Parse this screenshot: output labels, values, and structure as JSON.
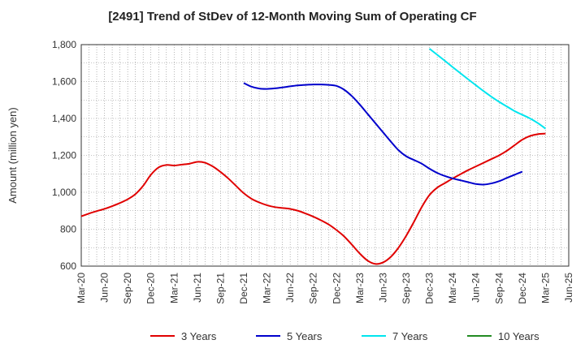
{
  "chart_data": {
    "type": "line",
    "title": "[2491]  Trend of StDev of 12-Month Moving Sum of Operating CF",
    "xlabel": "",
    "ylabel": "Amount (million yen)",
    "ylim": [
      600,
      1800
    ],
    "yticks": [
      600,
      800,
      1000,
      1200,
      1400,
      1600,
      1800
    ],
    "ytick_labels": [
      "600",
      "800",
      "1,000",
      "1,200",
      "1,400",
      "1,600",
      "1,800"
    ],
    "xtick_labels": [
      "Mar-20",
      "Jun-20",
      "Sep-20",
      "Dec-20",
      "Mar-21",
      "Jun-21",
      "Sep-21",
      "Dec-21",
      "Mar-22",
      "Jun-22",
      "Sep-22",
      "Dec-22",
      "Mar-23",
      "Jun-23",
      "Sep-23",
      "Dec-23",
      "Mar-24",
      "Jun-24",
      "Sep-24",
      "Dec-24",
      "Mar-25",
      "Jun-25"
    ],
    "grid": true,
    "legend_position": "bottom",
    "series": [
      {
        "name": "3 Years",
        "color": "#e00000",
        "points": [
          [
            "2020-03",
            870
          ],
          [
            "2020-04",
            885
          ],
          [
            "2020-05",
            898
          ],
          [
            "2020-06",
            910
          ],
          [
            "2020-07",
            925
          ],
          [
            "2020-08",
            942
          ],
          [
            "2020-09",
            962
          ],
          [
            "2020-10",
            990
          ],
          [
            "2020-11",
            1035
          ],
          [
            "2020-12",
            1095
          ],
          [
            "2021-01",
            1135
          ],
          [
            "2021-02",
            1148
          ],
          [
            "2021-03",
            1145
          ],
          [
            "2021-04",
            1150
          ],
          [
            "2021-05",
            1155
          ],
          [
            "2021-06",
            1165
          ],
          [
            "2021-07",
            1160
          ],
          [
            "2021-08",
            1140
          ],
          [
            "2021-09",
            1110
          ],
          [
            "2021-10",
            1075
          ],
          [
            "2021-11",
            1035
          ],
          [
            "2021-12",
            995
          ],
          [
            "2022-01",
            965
          ],
          [
            "2022-02",
            945
          ],
          [
            "2022-03",
            930
          ],
          [
            "2022-04",
            920
          ],
          [
            "2022-05",
            915
          ],
          [
            "2022-06",
            910
          ],
          [
            "2022-07",
            900
          ],
          [
            "2022-08",
            885
          ],
          [
            "2022-09",
            868
          ],
          [
            "2022-10",
            848
          ],
          [
            "2022-11",
            825
          ],
          [
            "2022-12",
            795
          ],
          [
            "2023-01",
            760
          ],
          [
            "2023-02",
            715
          ],
          [
            "2023-03",
            668
          ],
          [
            "2023-04",
            630
          ],
          [
            "2023-05",
            612
          ],
          [
            "2023-06",
            620
          ],
          [
            "2023-07",
            650
          ],
          [
            "2023-08",
            700
          ],
          [
            "2023-09",
            765
          ],
          [
            "2023-10",
            840
          ],
          [
            "2023-11",
            920
          ],
          [
            "2023-12",
            985
          ],
          [
            "2024-01",
            1025
          ],
          [
            "2024-02",
            1050
          ],
          [
            "2024-03",
            1075
          ],
          [
            "2024-04",
            1098
          ],
          [
            "2024-05",
            1120
          ],
          [
            "2024-06",
            1140
          ],
          [
            "2024-07",
            1160
          ],
          [
            "2024-08",
            1180
          ],
          [
            "2024-09",
            1200
          ],
          [
            "2024-10",
            1225
          ],
          [
            "2024-11",
            1255
          ],
          [
            "2024-12",
            1285
          ],
          [
            "2025-01",
            1305
          ],
          [
            "2025-02",
            1315
          ],
          [
            "2025-03",
            1318
          ]
        ]
      },
      {
        "name": "5 Years",
        "color": "#0000cc",
        "points": [
          [
            "2021-12",
            1592
          ],
          [
            "2022-01",
            1572
          ],
          [
            "2022-02",
            1562
          ],
          [
            "2022-03",
            1560
          ],
          [
            "2022-04",
            1563
          ],
          [
            "2022-05",
            1568
          ],
          [
            "2022-06",
            1574
          ],
          [
            "2022-07",
            1579
          ],
          [
            "2022-08",
            1582
          ],
          [
            "2022-09",
            1584
          ],
          [
            "2022-10",
            1584
          ],
          [
            "2022-11",
            1582
          ],
          [
            "2022-12",
            1576
          ],
          [
            "2023-01",
            1555
          ],
          [
            "2023-02",
            1520
          ],
          [
            "2023-03",
            1475
          ],
          [
            "2023-04",
            1425
          ],
          [
            "2023-05",
            1375
          ],
          [
            "2023-06",
            1325
          ],
          [
            "2023-07",
            1275
          ],
          [
            "2023-08",
            1228
          ],
          [
            "2023-09",
            1195
          ],
          [
            "2023-10",
            1175
          ],
          [
            "2023-11",
            1155
          ],
          [
            "2023-12",
            1128
          ],
          [
            "2024-01",
            1105
          ],
          [
            "2024-02",
            1088
          ],
          [
            "2024-03",
            1075
          ],
          [
            "2024-04",
            1065
          ],
          [
            "2024-05",
            1055
          ],
          [
            "2024-06",
            1045
          ],
          [
            "2024-07",
            1042
          ],
          [
            "2024-08",
            1048
          ],
          [
            "2024-09",
            1060
          ],
          [
            "2024-10",
            1078
          ],
          [
            "2024-11",
            1095
          ],
          [
            "2024-12",
            1112
          ]
        ]
      },
      {
        "name": "7 Years",
        "color": "#00e5ee",
        "points": [
          [
            "2023-12",
            1778
          ],
          [
            "2024-01",
            1745
          ],
          [
            "2024-02",
            1712
          ],
          [
            "2024-03",
            1678
          ],
          [
            "2024-04",
            1645
          ],
          [
            "2024-05",
            1612
          ],
          [
            "2024-06",
            1580
          ],
          [
            "2024-07",
            1548
          ],
          [
            "2024-08",
            1518
          ],
          [
            "2024-09",
            1490
          ],
          [
            "2024-10",
            1465
          ],
          [
            "2024-11",
            1440
          ],
          [
            "2024-12",
            1420
          ],
          [
            "2025-01",
            1400
          ],
          [
            "2025-02",
            1375
          ],
          [
            "2025-03",
            1345
          ]
        ]
      },
      {
        "name": "10 Years",
        "color": "#228b22",
        "points": []
      }
    ]
  }
}
